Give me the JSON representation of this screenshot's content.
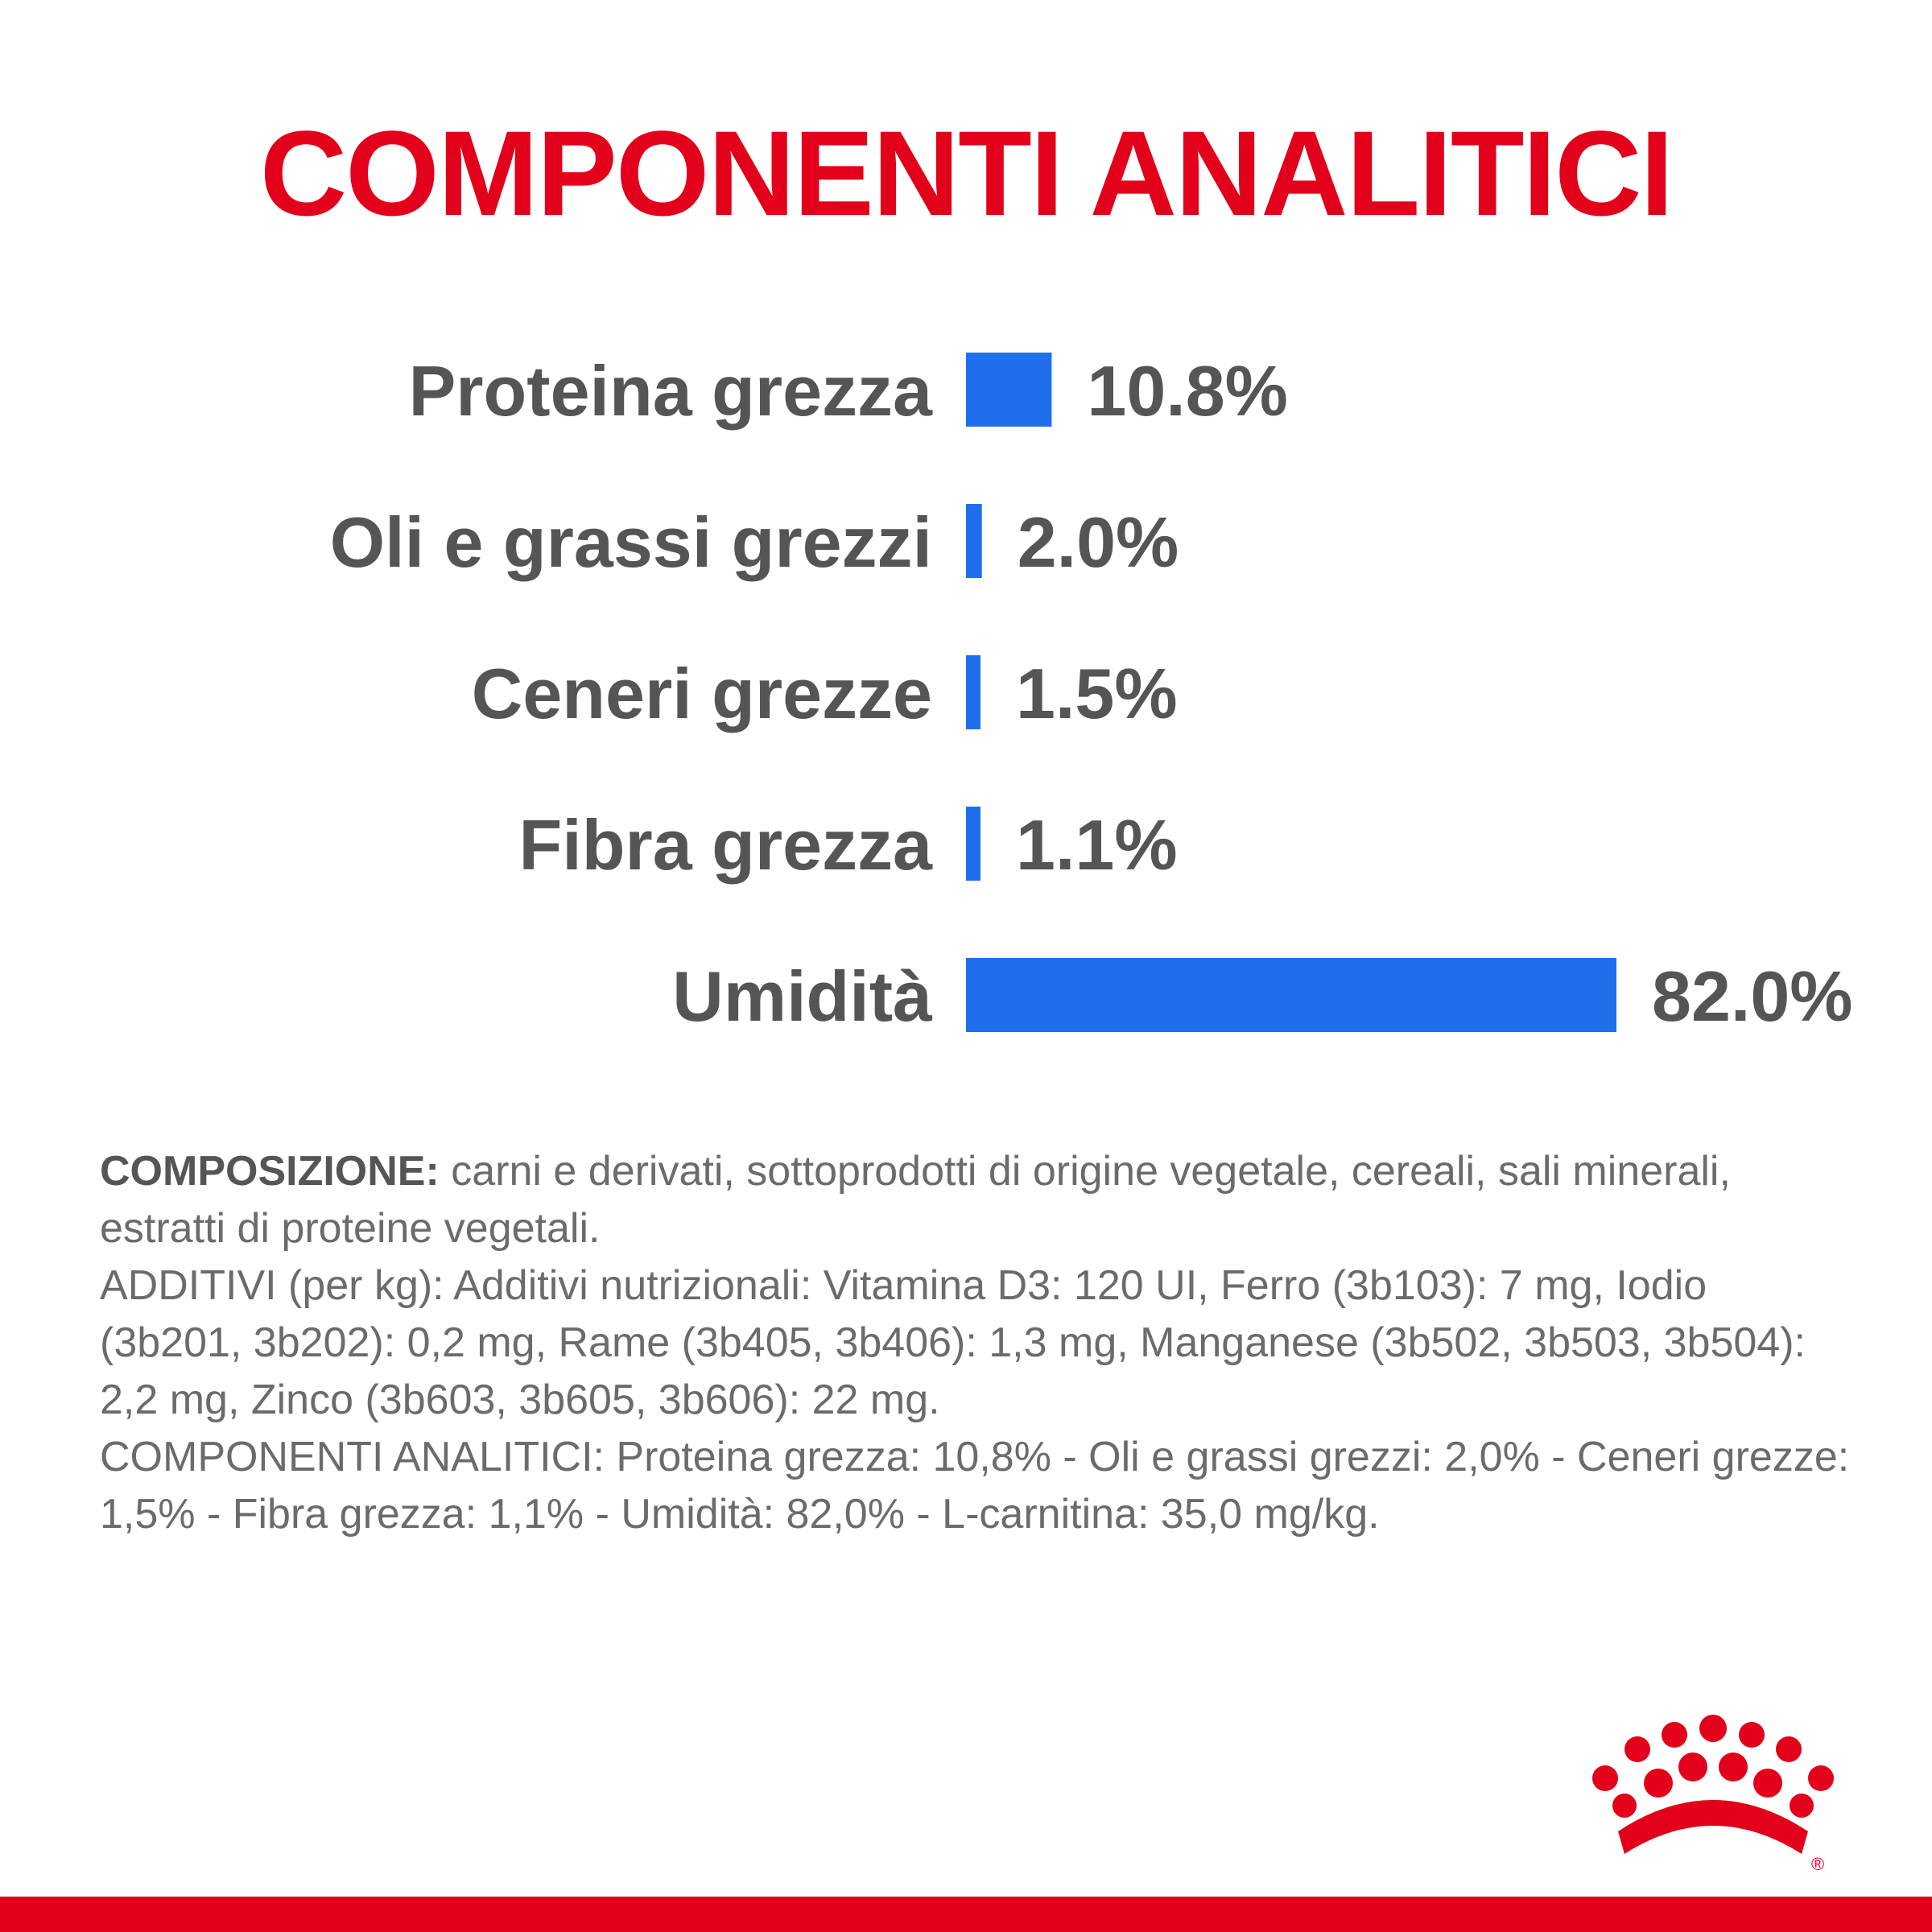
{
  "title": "COMPONENTI ANALITICI",
  "colors": {
    "brand_red": "#e2001a",
    "bar_blue": "#1f6fed",
    "label_gray": "#555555",
    "text_gray": "#6b6b6b"
  },
  "chart_data": {
    "type": "bar",
    "orientation": "horizontal",
    "categories": [
      "Proteina grezza",
      "Oli e grassi grezzi",
      "Ceneri grezze",
      "Fibra grezza",
      "Umidità"
    ],
    "values": [
      10.8,
      2.0,
      1.5,
      1.1,
      82.0
    ],
    "value_labels": [
      "10.8%",
      "2.0%",
      "1.5%",
      "1.1%",
      "82.0%"
    ],
    "unit": "%",
    "xlim": [
      0,
      82.0
    ],
    "grid": false,
    "legend": "none"
  },
  "composition": {
    "heading": "COMPOSIZIONE:",
    "ingredients": " carni e derivati, sottoprodotti di origine vegetale, cereali, sali minerali, estratti di proteine vegetali.",
    "additives": "ADDITIVI (per kg): Additivi nutrizionali: Vitamina D3: 120 UI, Ferro (3b103): 7 mg, Iodio (3b201, 3b202): 0,2 mg, Rame (3b405, 3b406): 1,3 mg, Manganese (3b502, 3b503, 3b504): 2,2 mg, Zinco (3b603, 3b605, 3b606): 22 mg.",
    "analytical": "COMPONENTI ANALITICI: Proteina grezza: 10,8% - Oli e grassi grezzi: 2,0% - Ceneri grezze: 1,5% - Fibra grezza: 1,1% - Umidità: 82,0% - L-carnitina: 35,0 mg/kg."
  },
  "logo": {
    "name": "royal-canin-crown-logo",
    "mark": "®"
  }
}
